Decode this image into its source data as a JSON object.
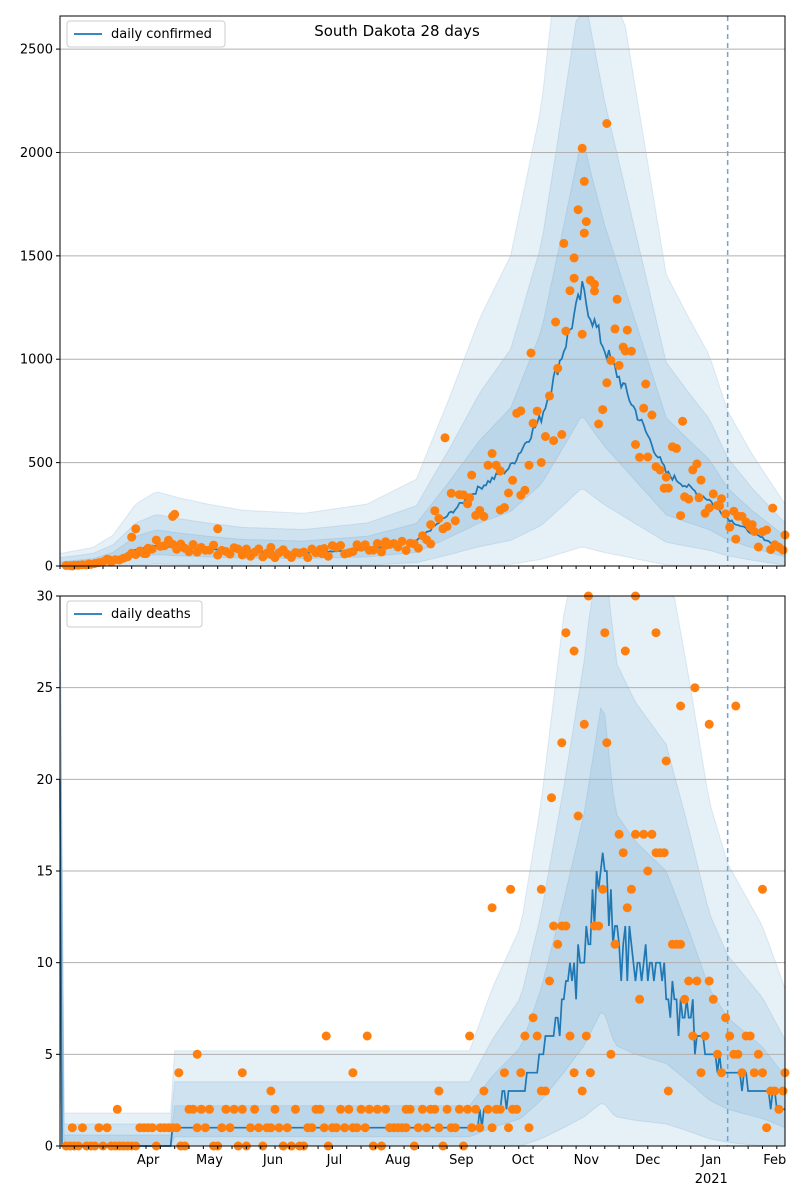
{
  "chart_data": [
    {
      "type": "line",
      "title": "South Dakota 28 days",
      "legend": [
        "daily confirmed"
      ],
      "legend_position": "top-left",
      "ylim": [
        0,
        2660
      ],
      "yticks": [
        0,
        500,
        1000,
        1500,
        2000,
        2500
      ],
      "grid": "y",
      "forecast_start": "2021-01-24",
      "x_start": "2020-03-04",
      "x_end": "2021-02-21",
      "model_line": [
        {
          "date": "2020-03-04",
          "value": 0
        },
        {
          "date": "2020-03-20",
          "value": 10
        },
        {
          "date": "2020-03-30",
          "value": 30
        },
        {
          "date": "2020-04-10",
          "value": 80
        },
        {
          "date": "2020-04-20",
          "value": 100
        },
        {
          "date": "2020-05-01",
          "value": 90
        },
        {
          "date": "2020-05-15",
          "value": 80
        },
        {
          "date": "2020-06-01",
          "value": 70
        },
        {
          "date": "2020-07-01",
          "value": 65
        },
        {
          "date": "2020-08-01",
          "value": 80
        },
        {
          "date": "2020-08-25",
          "value": 120
        },
        {
          "date": "2020-09-10",
          "value": 250
        },
        {
          "date": "2020-09-25",
          "value": 380
        },
        {
          "date": "2020-10-10",
          "value": 480
        },
        {
          "date": "2020-10-25",
          "value": 720
        },
        {
          "date": "2020-11-05",
          "value": 1050
        },
        {
          "date": "2020-11-14",
          "value": 1330
        },
        {
          "date": "2020-11-18",
          "value": 1220
        },
        {
          "date": "2020-11-25",
          "value": 1050
        },
        {
          "date": "2020-12-05",
          "value": 850
        },
        {
          "date": "2020-12-15",
          "value": 650
        },
        {
          "date": "2020-12-25",
          "value": 450
        },
        {
          "date": "2021-01-05",
          "value": 380
        },
        {
          "date": "2021-01-15",
          "value": 320
        },
        {
          "date": "2021-01-24",
          "value": 230
        },
        {
          "date": "2021-02-05",
          "value": 160
        },
        {
          "date": "2021-02-21",
          "value": 80
        }
      ],
      "observed": [
        {
          "date": "2020-03-10",
          "value": 0
        },
        {
          "date": "2020-03-18",
          "value": 10
        },
        {
          "date": "2020-03-28",
          "value": 30
        },
        {
          "date": "2020-04-08",
          "value": 140
        },
        {
          "date": "2020-04-10",
          "value": 180
        },
        {
          "date": "2020-04-15",
          "value": 60
        },
        {
          "date": "2020-04-28",
          "value": 240
        },
        {
          "date": "2020-04-29",
          "value": 250
        },
        {
          "date": "2020-05-20",
          "value": 180
        },
        {
          "date": "2020-06-15",
          "value": 90
        },
        {
          "date": "2020-07-10",
          "value": 60
        },
        {
          "date": "2020-08-10",
          "value": 100
        },
        {
          "date": "2020-09-01",
          "value": 200
        },
        {
          "date": "2020-09-08",
          "value": 620
        },
        {
          "date": "2020-09-20",
          "value": 330
        },
        {
          "date": "2020-10-05",
          "value": 460
        },
        {
          "date": "2020-10-15",
          "value": 750
        },
        {
          "date": "2020-10-20",
          "value": 1030
        },
        {
          "date": "2020-11-01",
          "value": 1180
        },
        {
          "date": "2020-11-05",
          "value": 1560
        },
        {
          "date": "2020-11-10",
          "value": 1490
        },
        {
          "date": "2020-11-14",
          "value": 2020
        },
        {
          "date": "2020-11-15",
          "value": 1860
        },
        {
          "date": "2020-11-15",
          "value": 1610
        },
        {
          "date": "2020-11-20",
          "value": 1330
        },
        {
          "date": "2020-11-26",
          "value": 2140
        },
        {
          "date": "2020-12-01",
          "value": 1290
        },
        {
          "date": "2020-12-05",
          "value": 1040
        },
        {
          "date": "2020-12-15",
          "value": 880
        },
        {
          "date": "2020-12-25",
          "value": 430
        },
        {
          "date": "2021-01-02",
          "value": 700
        },
        {
          "date": "2021-01-10",
          "value": 330
        },
        {
          "date": "2021-01-20",
          "value": 290
        },
        {
          "date": "2021-01-28",
          "value": 130
        },
        {
          "date": "2021-02-05",
          "value": 200
        },
        {
          "date": "2021-02-15",
          "value": 280
        },
        {
          "date": "2021-02-21",
          "value": 150
        }
      ]
    },
    {
      "type": "line",
      "title": "",
      "legend": [
        "daily deaths"
      ],
      "legend_position": "top-left",
      "ylim": [
        0,
        30
      ],
      "yticks": [
        0,
        5,
        10,
        15,
        20,
        25,
        30
      ],
      "xticks": [
        "Apr",
        "May",
        "Jun",
        "Jul",
        "Aug",
        "Sep",
        "Oct",
        "Nov",
        "Dec",
        "Jan",
        "Feb"
      ],
      "xtick_year": "2021",
      "grid": "y",
      "forecast_start": "2021-01-24",
      "x_start": "2020-03-04",
      "x_end": "2021-02-21",
      "model_line": [
        {
          "date": "2020-03-04",
          "value": 19
        },
        {
          "date": "2020-03-05",
          "value": 0
        },
        {
          "date": "2020-04-27",
          "value": 0
        },
        {
          "date": "2020-04-28",
          "value": 1
        },
        {
          "date": "2020-09-20",
          "value": 1
        },
        {
          "date": "2020-10-01",
          "value": 2
        },
        {
          "date": "2020-10-15",
          "value": 3
        },
        {
          "date": "2020-10-25",
          "value": 5
        },
        {
          "date": "2020-11-05",
          "value": 8
        },
        {
          "date": "2020-11-15",
          "value": 11
        },
        {
          "date": "2020-11-24",
          "value": 15
        },
        {
          "date": "2020-11-30",
          "value": 11
        },
        {
          "date": "2020-12-10",
          "value": 10
        },
        {
          "date": "2020-12-25",
          "value": 9
        },
        {
          "date": "2021-01-05",
          "value": 7
        },
        {
          "date": "2021-01-15",
          "value": 5
        },
        {
          "date": "2021-01-24",
          "value": 4
        },
        {
          "date": "2021-02-10",
          "value": 3
        },
        {
          "date": "2021-02-21",
          "value": 2
        }
      ],
      "observed": [
        {
          "date": "2020-03-10",
          "value": 1
        },
        {
          "date": "2020-04-01",
          "value": 2
        },
        {
          "date": "2020-05-01",
          "value": 4
        },
        {
          "date": "2020-05-10",
          "value": 5
        },
        {
          "date": "2020-06-01",
          "value": 4
        },
        {
          "date": "2020-06-15",
          "value": 3
        },
        {
          "date": "2020-07-12",
          "value": 6
        },
        {
          "date": "2020-07-25",
          "value": 4
        },
        {
          "date": "2020-08-01",
          "value": 6
        },
        {
          "date": "2020-08-20",
          "value": 2
        },
        {
          "date": "2020-09-05",
          "value": 3
        },
        {
          "date": "2020-09-20",
          "value": 6
        },
        {
          "date": "2020-10-01",
          "value": 13
        },
        {
          "date": "2020-10-10",
          "value": 14
        },
        {
          "date": "2020-10-25",
          "value": 14
        },
        {
          "date": "2020-10-30",
          "value": 19
        },
        {
          "date": "2020-11-04",
          "value": 22
        },
        {
          "date": "2020-11-06",
          "value": 28
        },
        {
          "date": "2020-11-10",
          "value": 27
        },
        {
          "date": "2020-11-15",
          "value": 23
        },
        {
          "date": "2020-11-17",
          "value": 30
        },
        {
          "date": "2020-11-25",
          "value": 28
        },
        {
          "date": "2020-12-05",
          "value": 27
        },
        {
          "date": "2020-12-10",
          "value": 30
        },
        {
          "date": "2020-12-20",
          "value": 28
        },
        {
          "date": "2020-12-25",
          "value": 21
        },
        {
          "date": "2021-01-01",
          "value": 24
        },
        {
          "date": "2021-01-08",
          "value": 25
        },
        {
          "date": "2021-01-15",
          "value": 23
        },
        {
          "date": "2021-01-28",
          "value": 24
        },
        {
          "date": "2021-02-10",
          "value": 14
        },
        {
          "date": "2021-02-21",
          "value": 4
        }
      ]
    }
  ]
}
